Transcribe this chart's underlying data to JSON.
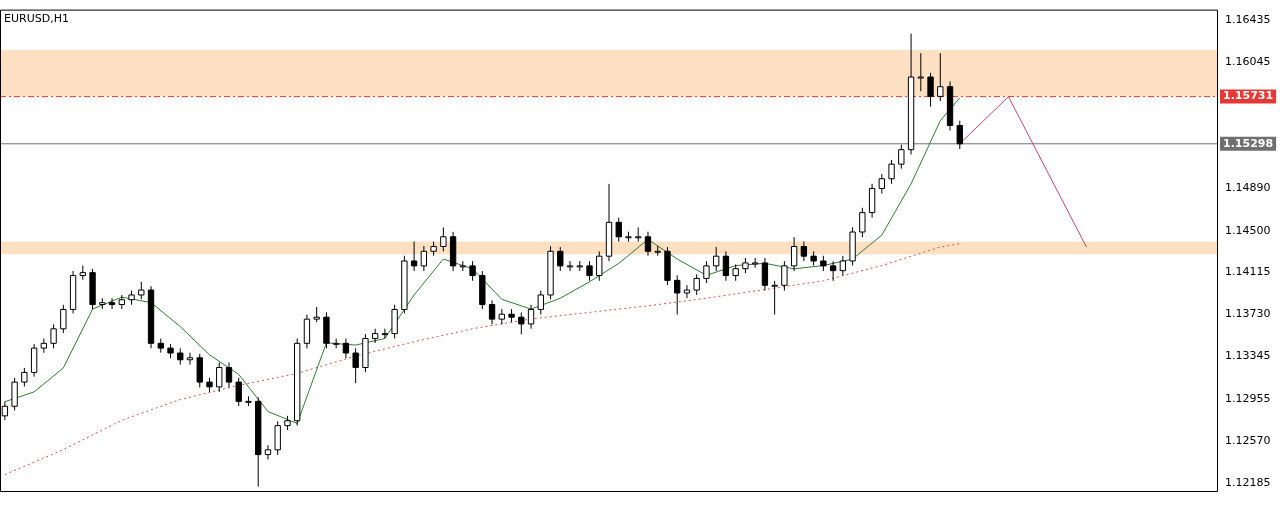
{
  "chart_data": {
    "type": "candlestick",
    "title": "EURUSD,H1",
    "categories": [
      null,
      null,
      null,
      null,
      null,
      null,
      null,
      null,
      null,
      null,
      null,
      null,
      null,
      null,
      null,
      null,
      null,
      null,
      null,
      null,
      null,
      null,
      null,
      null,
      null,
      null,
      null,
      null,
      null,
      null,
      null,
      null,
      null,
      null,
      null,
      null,
      null,
      null,
      null,
      null,
      null,
      null,
      null,
      null,
      null,
      null,
      null,
      null,
      null,
      null,
      null,
      null,
      null,
      null,
      null,
      null,
      null,
      null,
      null,
      null,
      null,
      null,
      null,
      null,
      null,
      null,
      null,
      null,
      null,
      null,
      null,
      null,
      null,
      null,
      null,
      null,
      null,
      null,
      null,
      null,
      null,
      null,
      null,
      null,
      null,
      null,
      null,
      null,
      null,
      null,
      null,
      null,
      null,
      null,
      null,
      null,
      null,
      null,
      null,
      null,
      null,
      null,
      null,
      null,
      null,
      null,
      null,
      null,
      null,
      null,
      null,
      null,
      null,
      null,
      null,
      null,
      null,
      null,
      null,
      null,
      null,
      null,
      null,
      null,
      null
    ],
    "ohlc": [
      [
        1.128,
        1.1293,
        1.1276,
        1.12888
      ],
      [
        1.12888,
        1.1315,
        1.1285,
        1.1311
      ],
      [
        1.1311,
        1.1324,
        1.1307,
        1.13199
      ],
      [
        1.13199,
        1.1346,
        1.1316,
        1.13422
      ],
      [
        1.13422,
        1.1351,
        1.1338,
        1.13466
      ],
      [
        1.13466,
        1.1364,
        1.1342,
        1.13599
      ],
      [
        1.13599,
        1.1382,
        1.1356,
        1.13777
      ],
      [
        1.13777,
        1.1413,
        1.1374,
        1.14088
      ],
      [
        1.14088,
        1.1418,
        1.1405,
        1.14115
      ],
      [
        1.14115,
        1.1415,
        1.1378,
        1.13822
      ],
      [
        1.13822,
        1.1388,
        1.1378,
        1.13839
      ],
      [
        1.13839,
        1.1388,
        1.1378,
        1.13822
      ],
      [
        1.13822,
        1.1391,
        1.1378,
        1.13866
      ],
      [
        1.13866,
        1.1395,
        1.1382,
        1.1391
      ],
      [
        1.1391,
        1.1403,
        1.1387,
        1.13955
      ],
      [
        1.13955,
        1.1399,
        1.1342,
        1.13466
      ],
      [
        1.13466,
        1.1351,
        1.1338,
        1.13422
      ],
      [
        1.13422,
        1.1346,
        1.1333,
        1.13377
      ],
      [
        1.13377,
        1.1342,
        1.1327,
        1.13315
      ],
      [
        1.13315,
        1.1338,
        1.1327,
        1.13333
      ],
      [
        1.13333,
        1.1337,
        1.1306,
        1.1311
      ],
      [
        1.1311,
        1.1315,
        1.1302,
        1.13066
      ],
      [
        1.13066,
        1.1329,
        1.1302,
        1.13244
      ],
      [
        1.13244,
        1.1329,
        1.1306,
        1.1311
      ],
      [
        1.1311,
        1.1315,
        1.1289,
        1.12933
      ],
      [
        1.12933,
        1.1298,
        1.1289,
        1.12933
      ],
      [
        1.12933,
        1.1297,
        1.1215,
        1.12444
      ],
      [
        1.12444,
        1.1253,
        1.124,
        1.12488
      ],
      [
        1.12488,
        1.1275,
        1.1244,
        1.1271
      ],
      [
        1.1271,
        1.128,
        1.1267,
        1.12755
      ],
      [
        1.12755,
        1.1351,
        1.1271,
        1.13466
      ],
      [
        1.13466,
        1.1373,
        1.1342,
        1.13688
      ],
      [
        1.13688,
        1.138,
        1.1366,
        1.13706
      ],
      [
        1.13706,
        1.1375,
        1.1342,
        1.13466
      ],
      [
        1.13466,
        1.1351,
        1.1342,
        1.13466
      ],
      [
        1.13466,
        1.1351,
        1.1333,
        1.13377
      ],
      [
        1.13377,
        1.1342,
        1.131,
        1.13244
      ],
      [
        1.13244,
        1.1355,
        1.132,
        1.1351
      ],
      [
        1.1351,
        1.136,
        1.1347,
        1.13555
      ],
      [
        1.13555,
        1.136,
        1.1351,
        1.13555
      ],
      [
        1.13555,
        1.1382,
        1.1351,
        1.13777
      ],
      [
        1.13777,
        1.1427,
        1.1374,
        1.14222
      ],
      [
        1.14222,
        1.144,
        1.1413,
        1.14177
      ],
      [
        1.14177,
        1.1436,
        1.1413,
        1.14311
      ],
      [
        1.14311,
        1.144,
        1.1427,
        1.14355
      ],
      [
        1.14355,
        1.1453,
        1.1431,
        1.14444
      ],
      [
        1.14444,
        1.1449,
        1.1413,
        1.14177
      ],
      [
        1.14177,
        1.1422,
        1.1413,
        1.14177
      ],
      [
        1.14177,
        1.1422,
        1.1404,
        1.14088
      ],
      [
        1.14088,
        1.1413,
        1.1378,
        1.13822
      ],
      [
        1.13822,
        1.1386,
        1.1364,
        1.13688
      ],
      [
        1.13688,
        1.1378,
        1.1364,
        1.13733
      ],
      [
        1.13733,
        1.1378,
        1.1366,
        1.13706
      ],
      [
        1.13706,
        1.1375,
        1.1355,
        1.13644
      ],
      [
        1.13644,
        1.1382,
        1.136,
        1.13777
      ],
      [
        1.13777,
        1.1395,
        1.1373,
        1.1391
      ],
      [
        1.1391,
        1.1436,
        1.1387,
        1.14311
      ],
      [
        1.14311,
        1.1435,
        1.1413,
        1.14177
      ],
      [
        1.14177,
        1.1422,
        1.1413,
        1.14177
      ],
      [
        1.14177,
        1.1422,
        1.1413,
        1.14177
      ],
      [
        1.14177,
        1.1422,
        1.1404,
        1.14088
      ],
      [
        1.14088,
        1.1431,
        1.1404,
        1.14266
      ],
      [
        1.14266,
        1.1493,
        1.1422,
        1.14577
      ],
      [
        1.14577,
        1.1462,
        1.144,
        1.14444
      ],
      [
        1.14444,
        1.1449,
        1.144,
        1.14444
      ],
      [
        1.14444,
        1.1453,
        1.144,
        1.14444
      ],
      [
        1.14444,
        1.1449,
        1.1427,
        1.14311
      ],
      [
        1.14311,
        1.1436,
        1.1427,
        1.14311
      ],
      [
        1.14311,
        1.1435,
        1.14,
        1.14044
      ],
      [
        1.14044,
        1.1409,
        1.1373,
        1.13928
      ],
      [
        1.13928,
        1.14,
        1.1388,
        1.13955
      ],
      [
        1.13955,
        1.141,
        1.1391,
        1.14062
      ],
      [
        1.14062,
        1.1422,
        1.1402,
        1.14177
      ],
      [
        1.14177,
        1.1435,
        1.1413,
        1.14266
      ],
      [
        1.14266,
        1.1431,
        1.1404,
        1.14088
      ],
      [
        1.14088,
        1.1419,
        1.1404,
        1.14151
      ],
      [
        1.14151,
        1.1425,
        1.1411,
        1.14204
      ],
      [
        1.14204,
        1.1425,
        1.1416,
        1.14204
      ],
      [
        1.14204,
        1.1425,
        1.1395,
        1.13999
      ],
      [
        1.13999,
        1.1404,
        1.1373,
        1.13999
      ],
      [
        1.13999,
        1.1422,
        1.1395,
        1.14177
      ],
      [
        1.14177,
        1.1444,
        1.1413,
        1.14355
      ],
      [
        1.14355,
        1.144,
        1.1422,
        1.14266
      ],
      [
        1.14266,
        1.1431,
        1.1418,
        1.14222
      ],
      [
        1.14222,
        1.1427,
        1.1413,
        1.14177
      ],
      [
        1.14177,
        1.1422,
        1.1404,
        1.14133
      ],
      [
        1.14133,
        1.1427,
        1.1409,
        1.14222
      ],
      [
        1.14222,
        1.1453,
        1.1418,
        1.14488
      ],
      [
        1.14488,
        1.1471,
        1.1444,
        1.14666
      ],
      [
        1.14666,
        1.1493,
        1.1462,
        1.14888
      ],
      [
        1.14888,
        1.1502,
        1.1484,
        1.14977
      ],
      [
        1.14977,
        1.1515,
        1.1493,
        1.15111
      ],
      [
        1.15111,
        1.1529,
        1.1507,
        1.15244
      ],
      [
        1.15244,
        1.1631,
        1.152,
        1.15911
      ],
      [
        1.15911,
        1.1613,
        1.1578,
        1.15911
      ],
      [
        1.15911,
        1.1595,
        1.1564,
        1.15733
      ],
      [
        1.15733,
        1.1613,
        1.1569,
        1.15822
      ],
      [
        1.15822,
        1.1587,
        1.1542,
        1.15466
      ],
      [
        1.15466,
        1.1551,
        1.1525,
        1.15298
      ],
      null,
      null,
      null,
      null,
      null,
      null,
      null,
      null,
      null,
      null,
      null,
      null,
      null,
      null,
      null,
      null,
      null,
      null,
      null,
      null,
      null,
      null,
      null,
      null,
      null,
      null
    ],
    "series": [
      {
        "type": "line",
        "color": "#2e7d32",
        "values": [
          1.1293,
          null,
          null,
          1.1302,
          null,
          null,
          1.1324,
          null,
          null,
          1.1378,
          null,
          null,
          1.1389,
          null,
          null,
          1.1384,
          null,
          null,
          1.1362,
          null,
          null,
          1.1336,
          null,
          null,
          1.1318,
          null,
          null,
          1.1284,
          null,
          null,
          1.1273,
          null,
          null,
          1.1347,
          null,
          null,
          1.1345,
          null,
          null,
          1.1351,
          null,
          null,
          1.1391,
          null,
          null,
          1.1424,
          null,
          null,
          1.1415,
          null,
          null,
          1.1387,
          null,
          null,
          1.1378,
          null,
          null,
          1.1388,
          null,
          null,
          1.1403,
          null,
          null,
          1.142,
          null,
          null,
          1.1442,
          null,
          null,
          1.1424,
          null,
          null,
          1.1409,
          null,
          null,
          1.1418,
          null,
          null,
          1.142,
          null,
          null,
          1.1415,
          null,
          null,
          1.1418,
          null,
          null,
          1.1424,
          null,
          null,
          1.1446,
          null,
          null,
          1.1493,
          null,
          null,
          1.1551,
          null,
          1.1572,
          null,
          null,
          null,
          null,
          null,
          null,
          null,
          null,
          null,
          null,
          null,
          null,
          null,
          null,
          null,
          null,
          null,
          null,
          null,
          null,
          null,
          null,
          null,
          null,
          null,
          null
        ]
      },
      {
        "type": "line",
        "color": "#d9534f",
        "line_style": "dotted",
        "values": [
          1.1226,
          null,
          null,
          null,
          null,
          null,
          1.1249,
          null,
          null,
          null,
          null,
          null,
          1.1276,
          null,
          null,
          null,
          null,
          null,
          1.1295,
          null,
          null,
          null,
          null,
          null,
          1.1308,
          null,
          null,
          null,
          null,
          null,
          1.1319,
          null,
          null,
          null,
          null,
          null,
          1.1335,
          null,
          null,
          null,
          null,
          null,
          1.1348,
          null,
          null,
          null,
          null,
          null,
          1.136,
          null,
          null,
          null,
          null,
          null,
          1.1369,
          null,
          null,
          null,
          null,
          null,
          1.1375,
          null,
          null,
          null,
          null,
          null,
          1.1381,
          null,
          null,
          null,
          null,
          null,
          1.1388,
          null,
          null,
          null,
          null,
          null,
          1.1396,
          null,
          null,
          null,
          null,
          null,
          1.1404,
          null,
          null,
          null,
          null,
          null,
          1.1418,
          null,
          null,
          null,
          null,
          null,
          1.1435,
          null,
          1.1438,
          null,
          null,
          null,
          null,
          null,
          null,
          null,
          null,
          null,
          null,
          null,
          null,
          null,
          null,
          null,
          null,
          null,
          null,
          null,
          null,
          null,
          null,
          null,
          null,
          null,
          null
        ]
      },
      {
        "type": "line",
        "color": "#c2476e",
        "values": [
          null,
          null,
          null,
          null,
          null,
          null,
          null,
          null,
          null,
          null,
          null,
          null,
          null,
          null,
          null,
          null,
          null,
          null,
          null,
          null,
          null,
          null,
          null,
          null,
          null,
          null,
          null,
          null,
          null,
          null,
          null,
          null,
          null,
          null,
          null,
          null,
          null,
          null,
          null,
          null,
          null,
          null,
          null,
          null,
          null,
          null,
          null,
          null,
          null,
          null,
          null,
          null,
          null,
          null,
          null,
          null,
          null,
          null,
          null,
          null,
          null,
          null,
          null,
          null,
          null,
          null,
          null,
          null,
          null,
          null,
          null,
          null,
          null,
          null,
          null,
          null,
          null,
          null,
          null,
          null,
          null,
          null,
          null,
          null,
          null,
          null,
          null,
          null,
          null,
          null,
          null,
          null,
          null,
          null,
          null,
          null,
          null,
          null,
          1.153,
          null,
          null,
          null,
          null,
          1.1573,
          null,
          null,
          null,
          null,
          null,
          null,
          null,
          1.1435,
          null,
          null,
          null,
          null,
          null,
          null,
          null,
          null,
          null,
          null,
          null,
          null,
          null
        ]
      }
    ],
    "ylim": [
      1.1211,
      1.1653
    ],
    "yticks": [
      1.12185,
      {
        "value": 1.1257,
        "label": "1.12570"
      },
      1.12955,
      1.13345,
      {
        "value": 1.1373,
        "label": "1.13730"
      },
      1.14115,
      {
        "value": 1.145,
        "label": "1.14500"
      },
      {
        "value": 1.1489,
        "label": "1.14890"
      },
      1.16045,
      1.16435
    ],
    "ref_lines": [
      {
        "axis": "y",
        "value": 1.15731,
        "label": "1.15731",
        "color": "#e53935",
        "line_style": "dashed"
      },
      {
        "axis": "y",
        "value": 1.15298,
        "label": "1.15298",
        "color": "#707070",
        "line_style": "solid"
      }
    ],
    "bands": [
      {
        "axis": "y",
        "from": 1.15731,
        "to": 1.1616,
        "color": "#fde0c2"
      },
      {
        "axis": "y",
        "from": 1.14284,
        "to": 1.144,
        "color": "#fde0c2"
      }
    ],
    "tick_labels": "y",
    "grid": false,
    "legend": false
  }
}
